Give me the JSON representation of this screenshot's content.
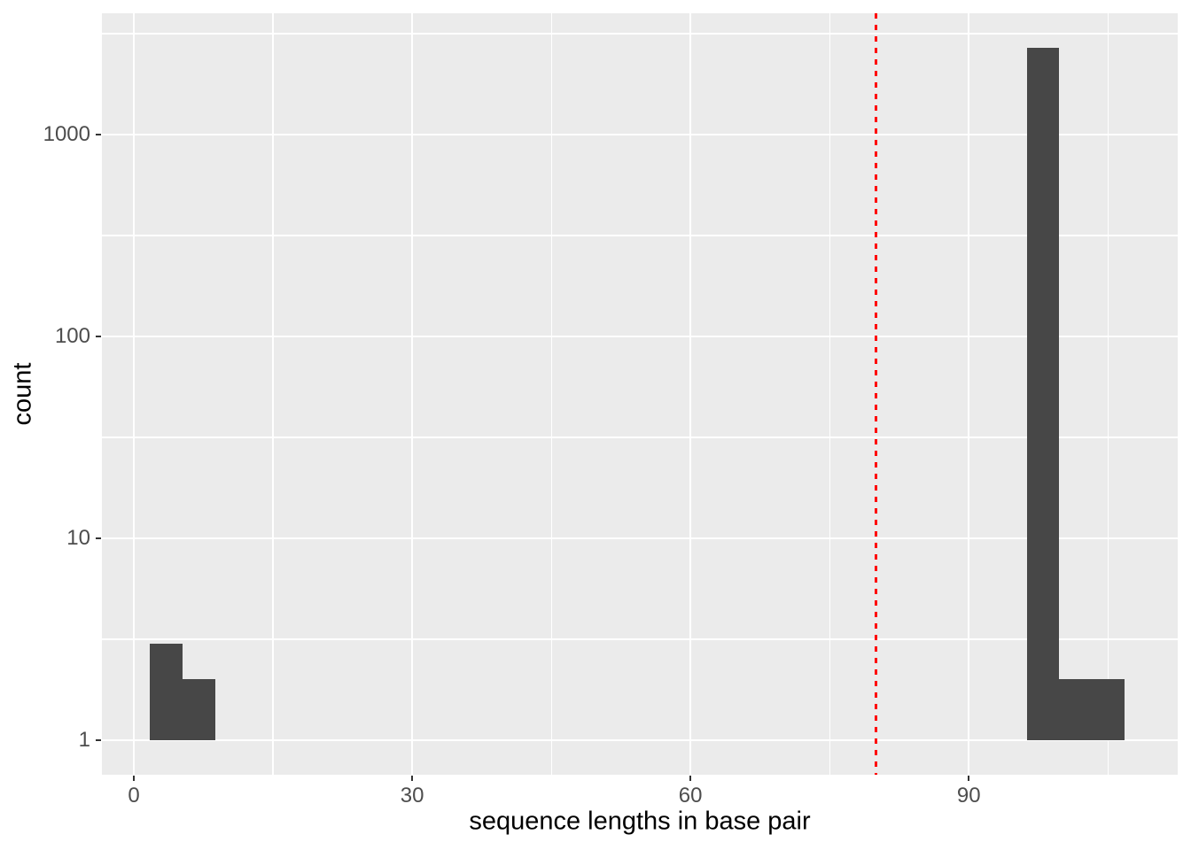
{
  "chart_data": {
    "type": "bar",
    "subtype": "histogram",
    "title": "",
    "xlabel": "sequence lengths in base pair",
    "ylabel": "count",
    "x_scale": "linear",
    "y_scale": "log10",
    "xlim": [
      -3.44,
      112.52
    ],
    "ylim_log10": [
      -0.171,
      3.601
    ],
    "x_major_ticks": [
      0,
      30,
      60,
      90
    ],
    "x_minor_gridlines": [
      15,
      45,
      75,
      105
    ],
    "y_major_ticks": [
      1,
      10,
      100,
      1000
    ],
    "y_minor_gridlines": [
      3.162,
      31.62,
      316.2,
      3162
    ],
    "grid": "on",
    "legend": "none",
    "bins": [
      {
        "x0": 1.75,
        "x1": 5.25,
        "count": 3
      },
      {
        "x0": 5.25,
        "x1": 8.75,
        "count": 2
      },
      {
        "x0": 96.25,
        "x1": 99.75,
        "count": 2690
      },
      {
        "x0": 99.75,
        "x1": 103.25,
        "count": 2
      },
      {
        "x0": 103.25,
        "x1": 106.75,
        "count": 2
      }
    ],
    "bar_baseline_count": 1,
    "reference_line": {
      "orientation": "vertical",
      "x": 80,
      "style": "dashed",
      "color": "#FF0000"
    },
    "colors": {
      "bar_fill": "#474747",
      "panel_background": "#EBEBEB",
      "gridline_major": "#FFFFFF",
      "gridline_minor": "#FFFFFF",
      "tick_label": "#4D4D4D",
      "axis_title": "#000000",
      "tick_mark": "#333333",
      "figure_background": "#FFFFFF"
    }
  }
}
